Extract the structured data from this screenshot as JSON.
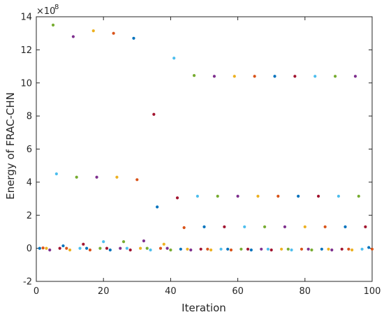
{
  "chart_data": {
    "type": "scatter",
    "title": "",
    "xlabel": "Iteration",
    "ylabel": "Energy of FRAC-CHN",
    "xlim": [
      0,
      100
    ],
    "ylim": [
      -2,
      14
    ],
    "y_exponent_label": "×10",
    "y_exponent_power": "8",
    "xticks": [
      0,
      20,
      40,
      60,
      80,
      100
    ],
    "yticks": [
      -2,
      0,
      2,
      4,
      6,
      8,
      10,
      12,
      14
    ],
    "grid": false,
    "legend": "none",
    "palette": [
      "#0072BD",
      "#D95319",
      "#EDB120",
      "#7E2F8E",
      "#77AC30",
      "#4DBEEE",
      "#A2142F"
    ],
    "points": [
      {
        "x": 1,
        "y": 0.0
      },
      {
        "x": 2,
        "y": 0.02
      },
      {
        "x": 3,
        "y": 0.0
      },
      {
        "x": 4,
        "y": -0.1
      },
      {
        "x": 5,
        "y": 13.5
      },
      {
        "x": 6,
        "y": 4.5
      },
      {
        "x": 7,
        "y": 0.0
      },
      {
        "x": 8,
        "y": 0.15
      },
      {
        "x": 9,
        "y": 0.0
      },
      {
        "x": 10,
        "y": -0.1
      },
      {
        "x": 11,
        "y": 12.8
      },
      {
        "x": 12,
        "y": 4.3
      },
      {
        "x": 13,
        "y": 0.0
      },
      {
        "x": 14,
        "y": 0.25
      },
      {
        "x": 15,
        "y": 0.0
      },
      {
        "x": 16,
        "y": -0.1
      },
      {
        "x": 17,
        "y": 13.15
      },
      {
        "x": 18,
        "y": 4.3
      },
      {
        "x": 19,
        "y": 0.0
      },
      {
        "x": 20,
        "y": 0.4
      },
      {
        "x": 21,
        "y": 0.0
      },
      {
        "x": 22,
        "y": -0.1
      },
      {
        "x": 23,
        "y": 13.0
      },
      {
        "x": 24,
        "y": 4.3
      },
      {
        "x": 25,
        "y": 0.0
      },
      {
        "x": 26,
        "y": 0.4
      },
      {
        "x": 27,
        "y": 0.0
      },
      {
        "x": 28,
        "y": -0.1
      },
      {
        "x": 29,
        "y": 12.7
      },
      {
        "x": 30,
        "y": 4.15
      },
      {
        "x": 31,
        "y": 0.0
      },
      {
        "x": 32,
        "y": 0.45
      },
      {
        "x": 33,
        "y": 0.0
      },
      {
        "x": 34,
        "y": -0.1
      },
      {
        "x": 35,
        "y": 8.1
      },
      {
        "x": 36,
        "y": 2.5
      },
      {
        "x": 37,
        "y": 0.0
      },
      {
        "x": 38,
        "y": 0.25
      },
      {
        "x": 39,
        "y": 0.0
      },
      {
        "x": 40,
        "y": -0.1
      },
      {
        "x": 41,
        "y": 11.5
      },
      {
        "x": 42,
        "y": 3.05
      },
      {
        "x": 43,
        "y": -0.05
      },
      {
        "x": 44,
        "y": 1.25
      },
      {
        "x": 45,
        "y": -0.05
      },
      {
        "x": 46,
        "y": -0.1
      },
      {
        "x": 47,
        "y": 10.45
      },
      {
        "x": 48,
        "y": 3.15
      },
      {
        "x": 49,
        "y": -0.05
      },
      {
        "x": 50,
        "y": 1.3
      },
      {
        "x": 51,
        "y": -0.05
      },
      {
        "x": 52,
        "y": -0.1
      },
      {
        "x": 53,
        "y": 10.4
      },
      {
        "x": 54,
        "y": 3.15
      },
      {
        "x": 55,
        "y": -0.05
      },
      {
        "x": 56,
        "y": 1.3
      },
      {
        "x": 57,
        "y": -0.05
      },
      {
        "x": 58,
        "y": -0.1
      },
      {
        "x": 59,
        "y": 10.4
      },
      {
        "x": 60,
        "y": 3.15
      },
      {
        "x": 61,
        "y": -0.05
      },
      {
        "x": 62,
        "y": 1.3
      },
      {
        "x": 63,
        "y": -0.05
      },
      {
        "x": 64,
        "y": -0.1
      },
      {
        "x": 65,
        "y": 10.4
      },
      {
        "x": 66,
        "y": 3.15
      },
      {
        "x": 67,
        "y": -0.05
      },
      {
        "x": 68,
        "y": 1.3
      },
      {
        "x": 69,
        "y": -0.05
      },
      {
        "x": 70,
        "y": -0.1
      },
      {
        "x": 71,
        "y": 10.4
      },
      {
        "x": 72,
        "y": 3.15
      },
      {
        "x": 73,
        "y": -0.05
      },
      {
        "x": 74,
        "y": 1.3
      },
      {
        "x": 75,
        "y": -0.05
      },
      {
        "x": 76,
        "y": -0.1
      },
      {
        "x": 77,
        "y": 10.4
      },
      {
        "x": 78,
        "y": 3.15
      },
      {
        "x": 79,
        "y": -0.05
      },
      {
        "x": 80,
        "y": 1.3
      },
      {
        "x": 81,
        "y": -0.05
      },
      {
        "x": 82,
        "y": -0.1
      },
      {
        "x": 83,
        "y": 10.4
      },
      {
        "x": 84,
        "y": 3.15
      },
      {
        "x": 85,
        "y": -0.05
      },
      {
        "x": 86,
        "y": 1.3
      },
      {
        "x": 87,
        "y": -0.05
      },
      {
        "x": 88,
        "y": -0.1
      },
      {
        "x": 89,
        "y": 10.4
      },
      {
        "x": 90,
        "y": 3.15
      },
      {
        "x": 91,
        "y": -0.05
      },
      {
        "x": 92,
        "y": 1.3
      },
      {
        "x": 93,
        "y": -0.05
      },
      {
        "x": 94,
        "y": -0.1
      },
      {
        "x": 95,
        "y": 10.4
      },
      {
        "x": 96,
        "y": 3.15
      },
      {
        "x": 97,
        "y": -0.05
      },
      {
        "x": 98,
        "y": 1.3
      },
      {
        "x": 99,
        "y": 0.05
      },
      {
        "x": 100,
        "y": -0.05
      }
    ]
  }
}
